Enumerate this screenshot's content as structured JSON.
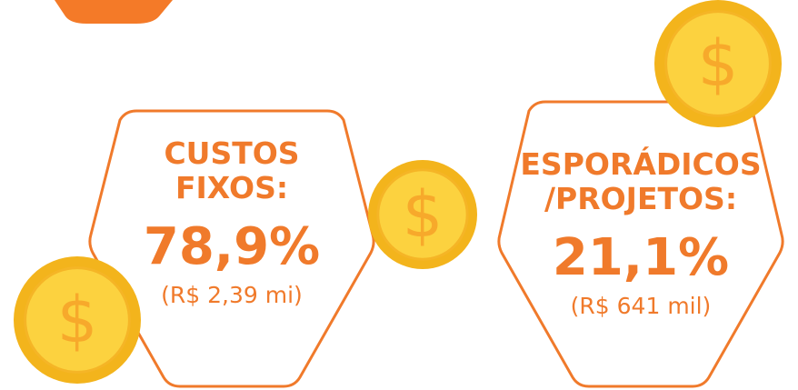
{
  "coin_symbol": "$",
  "cards": [
    {
      "title_lines": [
        "CUSTOS",
        "FIXOS:"
      ],
      "percent": "78,9%",
      "amount": "(R$ 2,39 mi)"
    },
    {
      "title_lines": [
        "ESPORÁDICOS",
        "/PROJETOS:"
      ],
      "percent": "21,1%",
      "amount": "(R$ 641 mil)"
    }
  ]
}
